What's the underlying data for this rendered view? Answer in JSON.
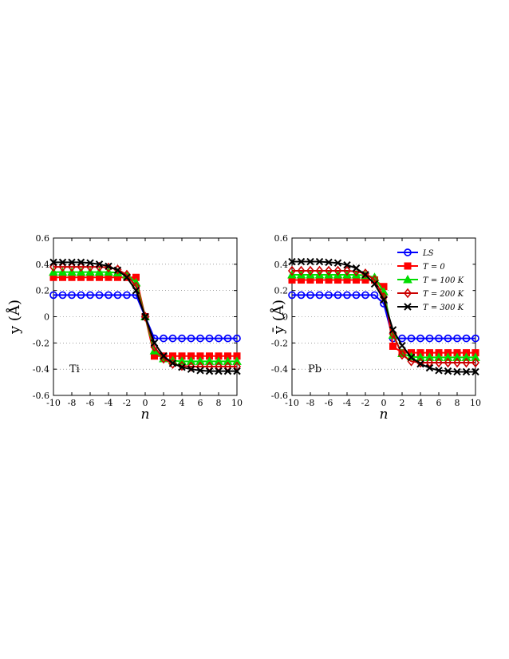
{
  "chart_data": [
    {
      "type": "line",
      "panel_label": "Ti",
      "ylabel": "y (Å)",
      "xlabel": "n",
      "xlim": [
        -10,
        10
      ],
      "ylim": [
        -0.6,
        0.6
      ],
      "x_ticks": [
        "-10",
        "-8",
        "-6",
        "-4",
        "-2",
        "0",
        "2",
        "4",
        "6",
        "8",
        "10"
      ],
      "y_ticks": [
        "0.6",
        "0.4",
        "0.2",
        "0",
        "-0.2",
        "-0.4",
        "-0.6"
      ],
      "grid": "horizontal dotted",
      "x": [
        -10,
        -9,
        -8,
        -7,
        -6,
        -5,
        -4,
        -3,
        -2,
        -1,
        0,
        1,
        2,
        3,
        4,
        5,
        6,
        7,
        8,
        9,
        10
      ],
      "series": [
        {
          "color": "#0000ff",
          "marker": "circle",
          "values": [
            0.165,
            0.165,
            0.165,
            0.165,
            0.165,
            0.165,
            0.165,
            0.165,
            0.165,
            0.165,
            0,
            -0.165,
            -0.165,
            -0.165,
            -0.165,
            -0.165,
            -0.165,
            -0.165,
            -0.165,
            -0.165,
            -0.165
          ]
        },
        {
          "color": "#ff0000",
          "marker": "square",
          "values": [
            0.3,
            0.3,
            0.3,
            0.3,
            0.3,
            0.3,
            0.3,
            0.3,
            0.3,
            0.3,
            0,
            -0.3,
            -0.3,
            -0.3,
            -0.3,
            -0.3,
            -0.3,
            -0.3,
            -0.3,
            -0.3,
            -0.3
          ]
        },
        {
          "color": "#00dd00",
          "marker": "triangle",
          "values": [
            0.34,
            0.34,
            0.34,
            0.34,
            0.34,
            0.34,
            0.34,
            0.335,
            0.32,
            0.26,
            0,
            -0.26,
            -0.32,
            -0.335,
            -0.34,
            -0.34,
            -0.34,
            -0.34,
            -0.34,
            -0.34,
            -0.34
          ]
        },
        {
          "color": "#cc0000",
          "marker": "diamond",
          "values": [
            0.38,
            0.38,
            0.38,
            0.38,
            0.38,
            0.38,
            0.375,
            0.36,
            0.32,
            0.23,
            0,
            -0.23,
            -0.32,
            -0.36,
            -0.375,
            -0.38,
            -0.38,
            -0.38,
            -0.38,
            -0.38,
            -0.38
          ]
        },
        {
          "color": "#000000",
          "marker": "x",
          "values": [
            0.415,
            0.415,
            0.415,
            0.415,
            0.41,
            0.4,
            0.385,
            0.355,
            0.3,
            0.2,
            0,
            -0.2,
            -0.3,
            -0.355,
            -0.385,
            -0.4,
            -0.41,
            -0.415,
            -0.415,
            -0.415,
            -0.415
          ]
        }
      ]
    },
    {
      "type": "line",
      "panel_label": "Pb",
      "ylabel": "ȳ (Å)",
      "xlabel": "n",
      "xlim": [
        -10,
        10
      ],
      "ylim": [
        -0.6,
        0.6
      ],
      "x_ticks": [
        "-10",
        "-8",
        "-6",
        "-4",
        "-2",
        "0",
        "2",
        "4",
        "6",
        "8",
        "10"
      ],
      "y_ticks": [
        "0.6",
        "0.4",
        "0.2",
        "0",
        "-0.2",
        "-0.4",
        "-0.6"
      ],
      "grid": "horizontal dotted",
      "legend_position": "top-right",
      "x": [
        -10,
        -9,
        -8,
        -7,
        -6,
        -5,
        -4,
        -3,
        -2,
        -1,
        0,
        1,
        2,
        3,
        4,
        5,
        6,
        7,
        8,
        9,
        10
      ],
      "series": [
        {
          "name": "LS",
          "color": "#0000ff",
          "marker": "circle",
          "values": [
            0.165,
            0.165,
            0.165,
            0.165,
            0.165,
            0.165,
            0.165,
            0.165,
            0.165,
            0.165,
            0.1,
            -0.165,
            -0.165,
            -0.165,
            -0.165,
            -0.165,
            -0.165,
            -0.165,
            -0.165,
            -0.165,
            -0.165
          ]
        },
        {
          "name": "T = 0",
          "color": "#ff0000",
          "marker": "square",
          "values": [
            0.28,
            0.28,
            0.28,
            0.28,
            0.28,
            0.28,
            0.28,
            0.28,
            0.28,
            0.28,
            0.23,
            -0.225,
            -0.275,
            -0.275,
            -0.275,
            -0.275,
            -0.275,
            -0.275,
            -0.275,
            -0.275,
            -0.275
          ]
        },
        {
          "name": "T = 100 K",
          "color": "#00dd00",
          "marker": "triangle",
          "values": [
            0.32,
            0.32,
            0.32,
            0.32,
            0.32,
            0.32,
            0.32,
            0.32,
            0.315,
            0.3,
            0.19,
            -0.14,
            -0.28,
            -0.305,
            -0.31,
            -0.31,
            -0.31,
            -0.31,
            -0.31,
            -0.31,
            -0.31
          ]
        },
        {
          "name": "T = 200 K",
          "color": "#cc0000",
          "marker": "diamond",
          "values": [
            0.35,
            0.35,
            0.35,
            0.35,
            0.35,
            0.35,
            0.35,
            0.345,
            0.33,
            0.28,
            0.15,
            -0.13,
            -0.29,
            -0.34,
            -0.35,
            -0.35,
            -0.35,
            -0.35,
            -0.35,
            -0.35,
            -0.35
          ]
        },
        {
          "name": "T = 300 K",
          "color": "#000000",
          "marker": "x",
          "values": [
            0.42,
            0.42,
            0.42,
            0.42,
            0.415,
            0.41,
            0.395,
            0.37,
            0.32,
            0.25,
            0.13,
            -0.1,
            -0.22,
            -0.31,
            -0.36,
            -0.39,
            -0.41,
            -0.415,
            -0.42,
            -0.42,
            -0.42
          ]
        }
      ]
    }
  ]
}
